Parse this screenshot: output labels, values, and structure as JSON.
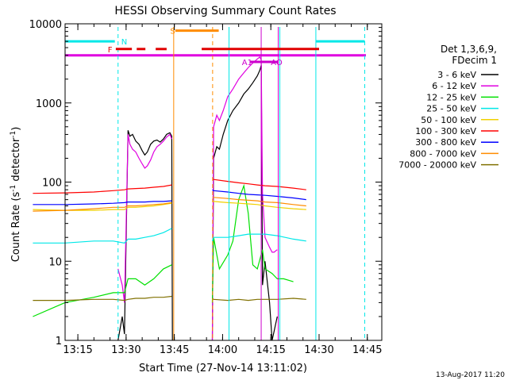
{
  "chart_data": {
    "type": "line",
    "title": "HESSI Observing Summary Count Rates",
    "xlabel": "Start Time (27-Nov-14 13:11:02)",
    "ylabel_main": "Count Rate (s",
    "ylabel_sup1": "-1",
    "ylabel_mid": " detector",
    "ylabel_sup2": "-1",
    "ylabel_end": ")",
    "footer": "13-Aug-2017 11:20",
    "x_range_min": [
      13.67,
      14.8
    ],
    "x_ticks": [
      {
        "label": "13:15",
        "min": 795
      },
      {
        "label": "13:30",
        "min": 810
      },
      {
        "label": "13:45",
        "min": 825
      },
      {
        "label": "14:00",
        "min": 840
      },
      {
        "label": "14:15",
        "min": 855
      },
      {
        "label": "14:30",
        "min": 870
      },
      {
        "label": "14:45",
        "min": 885
      }
    ],
    "x_min": 791.03,
    "x_max": 889.5,
    "y_log": true,
    "ylim": [
      1,
      10000
    ],
    "y_ticks": [
      "1",
      "10",
      "100",
      "1000",
      "10000"
    ],
    "legend": {
      "title_line1": "Det 1,3,6,9,",
      "title_line2": "FDecim 1",
      "placement": "right"
    },
    "series": [
      {
        "name": "3 - 6 keV",
        "color": "#000000",
        "points": [
          [
            807.5,
            1
          ],
          [
            808.8,
            2
          ],
          [
            809.5,
            1.2
          ],
          [
            810.6,
            450
          ],
          [
            811.2,
            380
          ],
          [
            812,
            400
          ],
          [
            813,
            330
          ],
          [
            814,
            300
          ],
          [
            815,
            250
          ],
          [
            815.8,
            220
          ],
          [
            816.6,
            240
          ],
          [
            817.6,
            300
          ],
          [
            818.6,
            330
          ],
          [
            819.6,
            340
          ],
          [
            820.6,
            320
          ],
          [
            821.6,
            350
          ],
          [
            822.6,
            400
          ],
          [
            823.6,
            420
          ],
          [
            824.2,
            380
          ],
          [
            824.4,
            1
          ],
          [
            833,
            null
          ],
          [
            836.8,
            1
          ],
          [
            837.2,
            200
          ],
          [
            838.2,
            280
          ],
          [
            839,
            260
          ],
          [
            840.2,
            400
          ],
          [
            841.6,
            600
          ],
          [
            843.2,
            800
          ],
          [
            845,
            1000
          ],
          [
            846.6,
            1300
          ],
          [
            848,
            1500
          ],
          [
            849.4,
            1800
          ],
          [
            850.8,
            2200
          ],
          [
            851.6,
            2600
          ],
          [
            852,
            3000
          ],
          [
            852.4,
            5
          ],
          [
            853.2,
            10
          ],
          [
            854.6,
            3
          ],
          [
            855.4,
            1
          ],
          [
            856,
            1.3
          ],
          [
            857,
            2
          ]
        ]
      },
      {
        "name": "6 - 12 keV",
        "color": "#e000e0",
        "points": [
          [
            807.5,
            8
          ],
          [
            808.8,
            5
          ],
          [
            809.5,
            3
          ],
          [
            810.6,
            400
          ],
          [
            811.2,
            300
          ],
          [
            812,
            260
          ],
          [
            813,
            240
          ],
          [
            814,
            200
          ],
          [
            815,
            170
          ],
          [
            815.8,
            150
          ],
          [
            816.6,
            160
          ],
          [
            817.6,
            190
          ],
          [
            818.6,
            240
          ],
          [
            819.6,
            280
          ],
          [
            820.6,
            300
          ],
          [
            821.6,
            330
          ],
          [
            822.6,
            370
          ],
          [
            823.6,
            400
          ],
          [
            824.2,
            350
          ],
          [
            824.4,
            null
          ],
          [
            836.8,
            1
          ],
          [
            837.2,
            500
          ],
          [
            838.2,
            700
          ],
          [
            839,
            600
          ],
          [
            840.2,
            800
          ],
          [
            841.6,
            1200
          ],
          [
            843.2,
            1500
          ],
          [
            845,
            2000
          ],
          [
            846.6,
            2400
          ],
          [
            848,
            2800
          ],
          [
            849.4,
            3200
          ],
          [
            850.8,
            3600
          ],
          [
            851.6,
            3800
          ],
          [
            852,
            3500
          ],
          [
            852.4,
            70
          ],
          [
            853.2,
            20
          ],
          [
            854.6,
            15
          ],
          [
            855.4,
            13
          ],
          [
            856,
            13
          ],
          [
            857,
            14
          ]
        ]
      },
      {
        "name": "12 - 25 keV",
        "color": "#00e000",
        "points": [
          [
            781,
            2
          ],
          [
            791,
            3
          ],
          [
            800,
            3.5
          ],
          [
            806,
            4
          ],
          [
            809.5,
            4
          ],
          [
            810.6,
            6
          ],
          [
            813,
            6
          ],
          [
            815.8,
            5
          ],
          [
            818.6,
            6
          ],
          [
            821.6,
            8
          ],
          [
            824.2,
            9
          ],
          [
            824.4,
            null
          ],
          [
            836.8,
            3
          ],
          [
            837.2,
            20
          ],
          [
            839,
            8
          ],
          [
            841.6,
            12
          ],
          [
            843.2,
            18
          ],
          [
            845,
            60
          ],
          [
            846.6,
            90
          ],
          [
            848,
            40
          ],
          [
            849.4,
            9
          ],
          [
            850.8,
            8
          ],
          [
            852.4,
            14
          ],
          [
            853.2,
            8
          ],
          [
            855.4,
            7
          ],
          [
            857,
            6
          ],
          [
            859,
            6
          ],
          [
            862,
            5.5
          ]
        ]
      },
      {
        "name": "25 - 50 keV",
        "color": "#00e8e8",
        "points": [
          [
            781,
            17
          ],
          [
            791,
            17
          ],
          [
            800,
            18
          ],
          [
            806,
            18
          ],
          [
            809.5,
            17
          ],
          [
            810.6,
            19
          ],
          [
            813,
            19
          ],
          [
            815.8,
            20
          ],
          [
            818.6,
            21
          ],
          [
            821.6,
            23
          ],
          [
            824.2,
            26
          ],
          [
            824.4,
            null
          ],
          [
            836.8,
            18
          ],
          [
            837.2,
            20
          ],
          [
            841.6,
            20
          ],
          [
            845,
            21
          ],
          [
            848,
            22
          ],
          [
            850.8,
            22
          ],
          [
            853.2,
            22
          ],
          [
            857,
            21
          ],
          [
            862,
            19
          ],
          [
            866,
            18
          ]
        ]
      },
      {
        "name": "50 - 100 keV",
        "color": "#f0d000",
        "points": [
          [
            781,
            45
          ],
          [
            791,
            44
          ],
          [
            800,
            44
          ],
          [
            806,
            45
          ],
          [
            809.5,
            45
          ],
          [
            810.6,
            48
          ],
          [
            813,
            48
          ],
          [
            815.8,
            49
          ],
          [
            818.6,
            50
          ],
          [
            821.6,
            52
          ],
          [
            824.2,
            54
          ],
          [
            824.4,
            null
          ],
          [
            836.8,
            58
          ],
          [
            837.2,
            57
          ],
          [
            841.6,
            55
          ],
          [
            845,
            54
          ],
          [
            848,
            53
          ],
          [
            850.8,
            52
          ],
          [
            853.2,
            50
          ],
          [
            857,
            48
          ],
          [
            862,
            46
          ],
          [
            866,
            45
          ]
        ]
      },
      {
        "name": "100 - 300 keV",
        "color": "#ff0000",
        "points": [
          [
            781,
            72
          ],
          [
            791,
            73
          ],
          [
            800,
            75
          ],
          [
            806,
            78
          ],
          [
            809.5,
            80
          ],
          [
            810.6,
            82
          ],
          [
            813,
            83
          ],
          [
            815.8,
            84
          ],
          [
            818.6,
            86
          ],
          [
            821.6,
            88
          ],
          [
            824.2,
            92
          ],
          [
            824.4,
            null
          ],
          [
            836.8,
            110
          ],
          [
            837.2,
            108
          ],
          [
            841.6,
            102
          ],
          [
            845,
            98
          ],
          [
            848,
            95
          ],
          [
            850.8,
            92
          ],
          [
            853.2,
            90
          ],
          [
            857,
            88
          ],
          [
            862,
            84
          ],
          [
            866,
            80
          ]
        ]
      },
      {
        "name": "300 - 800 keV",
        "color": "#0000ff",
        "points": [
          [
            781,
            52
          ],
          [
            791,
            52
          ],
          [
            800,
            53
          ],
          [
            806,
            54
          ],
          [
            809.5,
            55
          ],
          [
            810.6,
            56
          ],
          [
            813,
            56
          ],
          [
            815.8,
            56
          ],
          [
            818.6,
            57
          ],
          [
            821.6,
            57
          ],
          [
            824.2,
            58
          ],
          [
            824.4,
            null
          ],
          [
            836.8,
            80
          ],
          [
            837.2,
            78
          ],
          [
            841.6,
            75
          ],
          [
            845,
            72
          ],
          [
            848,
            70
          ],
          [
            850.8,
            69
          ],
          [
            853.2,
            68
          ],
          [
            857,
            66
          ],
          [
            862,
            63
          ],
          [
            866,
            60
          ]
        ]
      },
      {
        "name": "800 - 7000 keV",
        "color": "#ff8c00",
        "points": [
          [
            781,
            43
          ],
          [
            791,
            44
          ],
          [
            800,
            46
          ],
          [
            806,
            48
          ],
          [
            809.5,
            48
          ],
          [
            810.6,
            50
          ],
          [
            813,
            50
          ],
          [
            815.8,
            51
          ],
          [
            818.6,
            52
          ],
          [
            821.6,
            53
          ],
          [
            824.2,
            55
          ],
          [
            824.4,
            null
          ],
          [
            836.8,
            65
          ],
          [
            837.2,
            64
          ],
          [
            841.6,
            62
          ],
          [
            845,
            60
          ],
          [
            848,
            59
          ],
          [
            850.8,
            58
          ],
          [
            853.2,
            56
          ],
          [
            857,
            55
          ],
          [
            862,
            52
          ],
          [
            866,
            50
          ]
        ]
      },
      {
        "name": "7000 - 20000 keV",
        "color": "#807000",
        "points": [
          [
            781,
            3.2
          ],
          [
            791,
            3.2
          ],
          [
            800,
            3.3
          ],
          [
            806,
            3.3
          ],
          [
            809.5,
            3.2
          ],
          [
            810.6,
            3.3
          ],
          [
            813,
            3.4
          ],
          [
            815.8,
            3.4
          ],
          [
            818.6,
            3.5
          ],
          [
            821.6,
            3.5
          ],
          [
            824.2,
            3.6
          ],
          [
            824.4,
            null
          ],
          [
            836.8,
            3.4
          ],
          [
            837.2,
            3.3
          ],
          [
            841.6,
            3.2
          ],
          [
            845,
            3.3
          ],
          [
            848,
            3.2
          ],
          [
            850.8,
            3.3
          ],
          [
            853.2,
            3.3
          ],
          [
            857,
            3.3
          ],
          [
            862,
            3.4
          ],
          [
            866,
            3.3
          ]
        ]
      }
    ],
    "flags": [
      {
        "label": "N",
        "color": "#00e8e8",
        "segments": [
          [
            791.03,
            806.5
          ],
          [
            868.9,
            884.2
          ]
        ],
        "y": 6000,
        "label_at": 808.5
      },
      {
        "label": "F",
        "color": "#e00000",
        "segments": [
          [
            806.8,
            811.8
          ],
          [
            813.3,
            816.0
          ],
          [
            819.2,
            822.6
          ],
          [
            833.5,
            870.0
          ]
        ],
        "y": 4800,
        "label_at": 804.3
      },
      {
        "label": "S",
        "color": "#ff8c00",
        "segments": [
          [
            825.3,
            838.8
          ]
        ],
        "y": 8200,
        "label_at": 823.7
      },
      {
        "label": "A1",
        "color": "#cc00cc",
        "segments": [
          [
            848.6,
            855.3
          ]
        ],
        "y": 3300,
        "label_at": 846.0
      },
      {
        "label": "AO",
        "color": "#cc00cc",
        "segments": [
          [
            855.3,
            857.3
          ]
        ],
        "y": 3300,
        "label_at": 855.0
      }
    ],
    "magenta_bar": {
      "color": "#e000e0",
      "y": 4000
    },
    "vlines": [
      {
        "x": 807.5,
        "color": "#00e8e8",
        "style": "dashed"
      },
      {
        "x": 824.8,
        "color": "#ff8c00",
        "style": "solid"
      },
      {
        "x": 836.9,
        "color": "#ff8c00",
        "style": "dashed"
      },
      {
        "x": 842.0,
        "color": "#00e8e8",
        "style": "solid"
      },
      {
        "x": 852.0,
        "color": "#cc00cc",
        "style": "solid"
      },
      {
        "x": 857.3,
        "color": "#cc00cc",
        "style": "solid"
      },
      {
        "x": 857.8,
        "color": "#00e8e8",
        "style": "solid"
      },
      {
        "x": 869.0,
        "color": "#00e8e8",
        "style": "solid"
      },
      {
        "x": 884.2,
        "color": "#00e8e8",
        "style": "dashed"
      }
    ]
  }
}
